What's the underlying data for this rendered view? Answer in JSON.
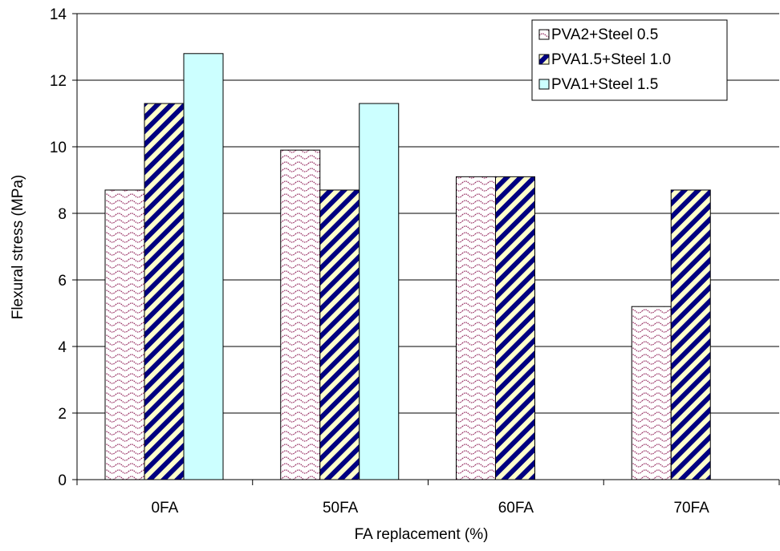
{
  "chart_data": {
    "type": "bar",
    "title": "",
    "xlabel": "FA replacement (%)",
    "ylabel": "Flexural stress (MPa)",
    "categories": [
      "0FA",
      "50FA",
      "60FA",
      "70FA"
    ],
    "ylim": [
      0,
      14
    ],
    "yticks": [
      "0",
      "2",
      "4",
      "6",
      "8",
      "10",
      "12",
      "14"
    ],
    "grid": true,
    "legend_position": "top-right",
    "series": [
      {
        "name": "PVA2+Steel 0.5",
        "values": [
          8.7,
          9.9,
          9.1,
          5.2
        ],
        "pattern": "wave-pink",
        "color": "#993366"
      },
      {
        "name": "PVA1.5+Steel 1.0",
        "values": [
          11.3,
          8.7,
          9.1,
          8.7
        ],
        "pattern": "diagonal-navy-cream",
        "color": "#000080"
      },
      {
        "name": "PVA1+Steel 1.5",
        "values": [
          12.8,
          11.3,
          0,
          0
        ],
        "pattern": "solid",
        "color": "#CCFFFF"
      }
    ]
  }
}
